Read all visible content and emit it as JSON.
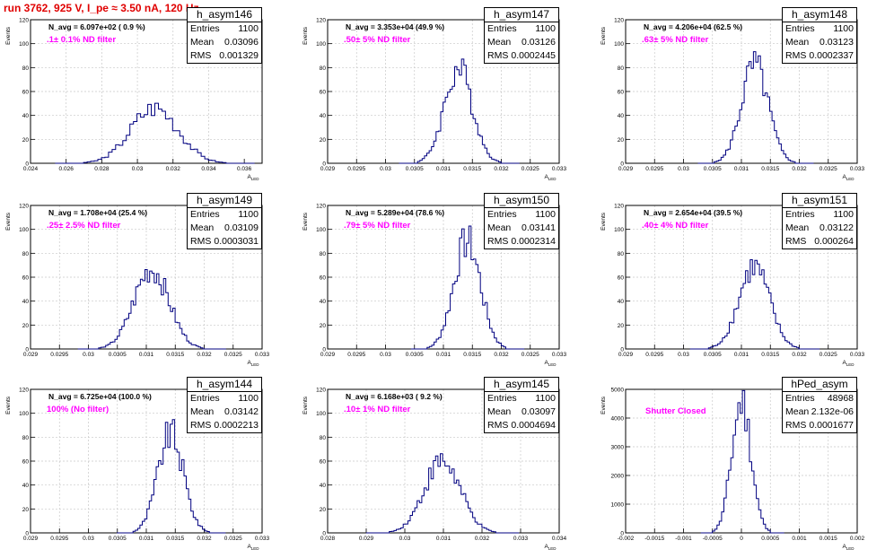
{
  "title": "run 3762,   925 V, I_pe ≈ 3.50 nA, 120 Hz",
  "colors": {
    "title": "#e00000",
    "histogram": "#000080",
    "label": "#ff00ff",
    "grid": "#c8c8c8"
  },
  "chart_data": [
    {
      "type": "histogram",
      "name": "h_asym146",
      "navg": "N_avg = 6.097e+02 ( 0.9 %)",
      "filter": ".1± 0.1% ND filter",
      "stats": {
        "entries_label": "Entries",
        "entries": "1100",
        "mean_label": "Mean",
        "mean": "0.03096",
        "rms_label": "RMS",
        "rms": "0.001329"
      },
      "xlim": [
        0.024,
        0.037
      ],
      "ylim": [
        0,
        120
      ],
      "xticks": [
        0.024,
        0.026,
        0.028,
        0.03,
        0.032,
        0.034,
        0.036
      ],
      "xtick_labels": [
        "0.024",
        "0.026",
        "0.028",
        "0.03",
        "0.032",
        "0.034",
        "0.036"
      ],
      "yticks": [
        0,
        20,
        40,
        60,
        80,
        100,
        120
      ],
      "xlabel": "A_LED",
      "ylabel": "Events",
      "dist": {
        "mean": 0.03096,
        "sigma": 0.001329,
        "peak": 49,
        "bin": 0.0002
      }
    },
    {
      "type": "histogram",
      "name": "h_asym147",
      "navg": "N_avg = 3.353e+04 (49.9 %)",
      "filter": ".50± 5% ND filter",
      "stats": {
        "entries_label": "Entries",
        "entries": "1100",
        "mean_label": "Mean",
        "mean": "0.03126",
        "rms_label": "RMS",
        "rms": "0.0002445"
      },
      "xlim": [
        0.029,
        0.033
      ],
      "ylim": [
        0,
        120
      ],
      "xticks": [
        0.029,
        0.0295,
        0.03,
        0.0305,
        0.031,
        0.0315,
        0.032,
        0.0325,
        0.033
      ],
      "xtick_labels": [
        "0.029",
        "0.0295",
        "0.03",
        "0.0305",
        "0.031",
        "0.0315",
        "0.032",
        "0.0325",
        "0.033"
      ],
      "yticks": [
        0,
        20,
        40,
        60,
        80,
        100,
        120
      ],
      "xlabel": "A_LED",
      "ylabel": "Events",
      "dist": {
        "mean": 0.03126,
        "sigma": 0.0002445,
        "peak": 83,
        "bin": 4e-05
      }
    },
    {
      "type": "histogram",
      "name": "h_asym148",
      "navg": "N_avg = 4.206e+04 (62.5 %)",
      "filter": ".63± 5% ND filter",
      "stats": {
        "entries_label": "Entries",
        "entries": "1100",
        "mean_label": "Mean",
        "mean": "0.03123",
        "rms_label": "RMS",
        "rms": "0.0002337"
      },
      "xlim": [
        0.029,
        0.033
      ],
      "ylim": [
        0,
        120
      ],
      "xticks": [
        0.029,
        0.0295,
        0.03,
        0.0305,
        0.031,
        0.0315,
        0.032,
        0.0325,
        0.033
      ],
      "xtick_labels": [
        "0.029",
        "0.0295",
        "0.03",
        "0.0305",
        "0.031",
        "0.0315",
        "0.032",
        "0.0325",
        "0.033"
      ],
      "yticks": [
        0,
        20,
        40,
        60,
        80,
        100,
        120
      ],
      "xlabel": "A_LED",
      "ylabel": "Events",
      "dist": {
        "mean": 0.03123,
        "sigma": 0.0002337,
        "peak": 86,
        "bin": 4e-05
      }
    },
    {
      "type": "histogram",
      "name": "h_asym149",
      "navg": "N_avg = 1.708e+04 (25.4 %)",
      "filter": ".25± 2.5% ND filter",
      "stats": {
        "entries_label": "Entries",
        "entries": "1100",
        "mean_label": "Mean",
        "mean": "0.03109",
        "rms_label": "RMS",
        "rms": "0.0003031"
      },
      "xlim": [
        0.029,
        0.033
      ],
      "ylim": [
        0,
        120
      ],
      "xticks": [
        0.029,
        0.0295,
        0.03,
        0.0305,
        0.031,
        0.0315,
        0.032,
        0.0325,
        0.033
      ],
      "xtick_labels": [
        "0.029",
        "0.0295",
        "0.03",
        "0.0305",
        "0.031",
        "0.0315",
        "0.032",
        "0.0325",
        "0.033"
      ],
      "yticks": [
        0,
        20,
        40,
        60,
        80,
        100,
        120
      ],
      "xlabel": "A_LED",
      "ylabel": "Events",
      "dist": {
        "mean": 0.03109,
        "sigma": 0.0003031,
        "peak": 70,
        "bin": 4e-05
      }
    },
    {
      "type": "histogram",
      "name": "h_asym150",
      "navg": "N_avg = 5.289e+04 (78.6 %)",
      "filter": ".79± 5% ND filter",
      "stats": {
        "entries_label": "Entries",
        "entries": "1100",
        "mean_label": "Mean",
        "mean": "0.03141",
        "rms_label": "RMS",
        "rms": "0.0002314"
      },
      "xlim": [
        0.029,
        0.033
      ],
      "ylim": [
        0,
        120
      ],
      "xticks": [
        0.029,
        0.0295,
        0.03,
        0.0305,
        0.031,
        0.0315,
        0.032,
        0.0325,
        0.033
      ],
      "xtick_labels": [
        "0.029",
        "0.0295",
        "0.03",
        "0.0305",
        "0.031",
        "0.0315",
        "0.032",
        "0.0325",
        "0.033"
      ],
      "yticks": [
        0,
        20,
        40,
        60,
        80,
        100,
        120
      ],
      "xlabel": "A_LED",
      "ylabel": "Events",
      "dist": {
        "mean": 0.03141,
        "sigma": 0.0002314,
        "peak": 95,
        "bin": 4e-05
      }
    },
    {
      "type": "histogram",
      "name": "h_asym151",
      "navg": "N_avg = 2.654e+04 (39.5 %)",
      "filter": ".40± 4% ND filter",
      "stats": {
        "entries_label": "Entries",
        "entries": "1100",
        "mean_label": "Mean",
        "mean": "0.03122",
        "rms_label": "RMS",
        "rms": "0.000264"
      },
      "xlim": [
        0.029,
        0.033
      ],
      "ylim": [
        0,
        120
      ],
      "xticks": [
        0.029,
        0.0295,
        0.03,
        0.0305,
        0.031,
        0.0315,
        0.032,
        0.0325,
        0.033
      ],
      "xtick_labels": [
        "0.029",
        "0.0295",
        "0.03",
        "0.0305",
        "0.031",
        "0.0315",
        "0.032",
        "0.0325",
        "0.033"
      ],
      "yticks": [
        0,
        20,
        40,
        60,
        80,
        100,
        120
      ],
      "xlabel": "A_LED",
      "ylabel": "Events",
      "dist": {
        "mean": 0.03122,
        "sigma": 0.000264,
        "peak": 72,
        "bin": 4e-05
      }
    },
    {
      "type": "histogram",
      "name": "h_asym144",
      "navg": "N_avg = 6.725e+04 (100.0 %)",
      "filter": "100% (No filter)",
      "stats": {
        "entries_label": "Entries",
        "entries": "1100",
        "mean_label": "Mean",
        "mean": "0.03142",
        "rms_label": "RMS",
        "rms": "0.0002213"
      },
      "xlim": [
        0.029,
        0.033
      ],
      "ylim": [
        0,
        120
      ],
      "xticks": [
        0.029,
        0.0295,
        0.03,
        0.0305,
        0.031,
        0.0315,
        0.032,
        0.0325,
        0.033
      ],
      "xtick_labels": [
        "0.029",
        "0.0295",
        "0.03",
        "0.0305",
        "0.031",
        "0.0315",
        "0.032",
        "0.0325",
        "0.033"
      ],
      "yticks": [
        0,
        20,
        40,
        60,
        80,
        100,
        120
      ],
      "xlabel": "A_LED",
      "ylabel": "Events",
      "dist": {
        "mean": 0.03142,
        "sigma": 0.0002213,
        "peak": 87,
        "bin": 4e-05
      }
    },
    {
      "type": "histogram",
      "name": "h_asym145",
      "navg": "N_avg = 6.168e+03 ( 9.2 %)",
      "filter": ".10± 1% ND filter",
      "stats": {
        "entries_label": "Entries",
        "entries": "1100",
        "mean_label": "Mean",
        "mean": "0.03097",
        "rms_label": "RMS",
        "rms": "0.0004694"
      },
      "xlim": [
        0.028,
        0.034
      ],
      "ylim": [
        0,
        120
      ],
      "xticks": [
        0.028,
        0.029,
        0.03,
        0.031,
        0.032,
        0.033,
        0.034
      ],
      "xtick_labels": [
        "0.028",
        "0.029",
        "0.03",
        "0.031",
        "0.032",
        "0.033",
        "0.034"
      ],
      "yticks": [
        0,
        20,
        40,
        60,
        80,
        100,
        120
      ],
      "xlabel": "A_LED",
      "ylabel": "Events",
      "dist": {
        "mean": 0.03097,
        "sigma": 0.0004694,
        "peak": 63,
        "bin": 6e-05
      }
    },
    {
      "type": "histogram",
      "name": "hPed_asym",
      "navg": "",
      "filter": "Shutter Closed",
      "stats": {
        "entries_label": "Entries",
        "entries": "48968",
        "mean_label": "Mean",
        "mean": "2.132e-06",
        "rms_label": "RMS",
        "rms": "0.0001677"
      },
      "xlim": [
        -0.002,
        0.002
      ],
      "ylim": [
        0,
        5000
      ],
      "xticks": [
        -0.002,
        -0.0015,
        -0.001,
        -0.0005,
        0,
        0.0005,
        0.001,
        0.0015,
        0.002
      ],
      "xtick_labels": [
        "-0.002",
        "-0.0015",
        "-0.001",
        "-0.0005",
        "0",
        "0.0005",
        "0.001",
        "0.0015",
        "0.002"
      ],
      "yticks": [
        0,
        1000,
        2000,
        3000,
        4000,
        5000
      ],
      "xlabel": "A_LED",
      "ylabel": "Events",
      "dist": {
        "mean": 2.132e-06,
        "sigma": 0.0001677,
        "peak": 4800,
        "bin": 4e-05
      }
    }
  ]
}
